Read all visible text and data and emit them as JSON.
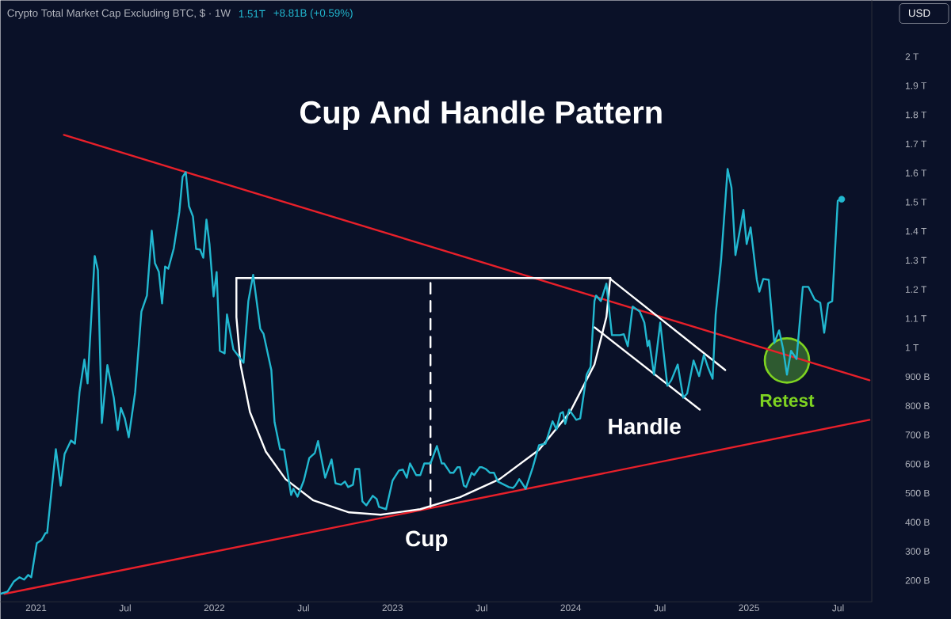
{
  "chart_data": {
    "type": "line",
    "title": "Cup And Handle Pattern",
    "subtitle": "Crypto Total Market Cap Excluding BTC, $ · 1W",
    "annotations": [
      "1.51T",
      "+8.81B (+0.59%)",
      "USD",
      "Cup",
      "Handle",
      {
        "text": "Retest",
        "x": 2025.213,
        "y": 956000000000.0
      }
    ],
    "xlim": [
      2020.8,
      2025.689
    ],
    "ylim": [
      127000000000.0,
      2193000000000.0
    ],
    "xticks": [
      {
        "value": 2021,
        "label": "2021"
      },
      {
        "value": 2021.5,
        "label": "Jul"
      },
      {
        "value": 2022,
        "label": "2022"
      },
      {
        "value": 2022.5,
        "label": "Jul"
      },
      {
        "value": 2023,
        "label": "2023"
      },
      {
        "value": 2023.5,
        "label": "Jul"
      },
      {
        "value": 2024,
        "label": "2024"
      },
      {
        "value": 2024.5,
        "label": "Jul"
      },
      {
        "value": 2025,
        "label": "2025"
      },
      {
        "value": 2025.5,
        "label": "Jul"
      }
    ],
    "yticks": [
      {
        "value": 200000000000.0,
        "label": "200 B"
      },
      {
        "value": 300000000000.0,
        "label": "300 B"
      },
      {
        "value": 400000000000.0,
        "label": "400 B"
      },
      {
        "value": 500000000000.0,
        "label": "500 B"
      },
      {
        "value": 600000000000.0,
        "label": "600 B"
      },
      {
        "value": 700000000000.0,
        "label": "700 B"
      },
      {
        "value": 800000000000.0,
        "label": "800 B"
      },
      {
        "value": 900000000000.0,
        "label": "900 B"
      },
      {
        "value": 1000000000000.0,
        "label": "1 T"
      },
      {
        "value": 1100000000000.0,
        "label": "1.1 T"
      },
      {
        "value": 1200000000000.0,
        "label": "1.2 T"
      },
      {
        "value": 1300000000000.0,
        "label": "1.3 T"
      },
      {
        "value": 1400000000000.0,
        "label": "1.4 T"
      },
      {
        "value": 1500000000000.0,
        "label": "1.5 T"
      },
      {
        "value": 1600000000000.0,
        "label": "1.6 T"
      },
      {
        "value": 1700000000000.0,
        "label": "1.7 T"
      },
      {
        "value": 1800000000000.0,
        "label": "1.8 T"
      },
      {
        "value": 1900000000000.0,
        "label": "1.9 T"
      },
      {
        "value": 2000000000000.0,
        "label": "2 T"
      }
    ],
    "series": [
      {
        "color": "#e8202a",
        "x": [
          2021.156,
          2025.676
        ],
        "values": [
          1731000000000.0,
          888000000000.0
        ]
      },
      {
        "color": "#e8202a",
        "x": [
          2020.822,
          2025.676
        ],
        "values": [
          154000000000.0,
          752000000000.0
        ]
      },
      {
        "color": "#ffffff",
        "x": [
          2022.124,
          2024.222
        ],
        "values": [
          1239000000000.0,
          1239000000000.0
        ]
      },
      {
        "color": "#ffffff",
        "x": [
          2022.124,
          2022.124,
          2022.147,
          2022.2,
          2022.289,
          2022.4,
          2022.556,
          2022.756,
          2022.933,
          2023.156,
          2023.378,
          2023.6,
          2023.822,
          2023.996,
          2024.133,
          2024.2,
          2024.222
        ],
        "values": [
          1239000000000.0,
          1105000000000.0,
          942000000000.0,
          779000000000.0,
          643000000000.0,
          548000000000.0,
          475000000000.0,
          434000000000.0,
          426000000000.0,
          445000000000.0,
          486000000000.0,
          548000000000.0,
          649000000000.0,
          779000000000.0,
          942000000000.0,
          1105000000000.0,
          1239000000000.0
        ]
      },
      {
        "color": "#ffffff",
        "line_style": "dashed",
        "x": [
          2023.213,
          2023.213
        ],
        "values": [
          1222000000000.0,
          453000000000.0
        ]
      },
      {
        "color": "#ffffff",
        "x": [
          2024.222,
          2024.867
        ],
        "values": [
          1236000000000.0,
          923000000000.0
        ]
      },
      {
        "color": "#ffffff",
        "x": [
          2024.133,
          2024.724
        ],
        "values": [
          1070000000000.0,
          787000000000.0
        ]
      },
      {
        "color": "#22b8d0",
        "x": [
          2020.8,
          2020.84,
          2020.876,
          2020.907,
          2020.933,
          2020.956,
          2020.973,
          2021.004,
          2021.031,
          2021.053,
          2021.062,
          2021.111,
          2021.138,
          2021.16,
          2021.196,
          2021.218,
          2021.244,
          2021.271,
          2021.289,
          2021.329,
          2021.347,
          2021.369,
          2021.4,
          2021.436,
          2021.458,
          2021.476,
          2021.498,
          2021.52,
          2021.556,
          2021.591,
          2021.622,
          2021.649,
          2021.667,
          2021.689,
          2021.707,
          2021.724,
          2021.742,
          2021.773,
          2021.804,
          2021.822,
          2021.84,
          2021.858,
          2021.88,
          2021.898,
          2021.92,
          2021.938,
          2021.956,
          2021.973,
          2021.996,
          2022.013,
          2022.031,
          2022.058,
          2022.071,
          2022.107,
          2022.164,
          2022.191,
          2022.218,
          2022.258,
          2022.276,
          2022.32,
          2022.338,
          2022.369,
          2022.391,
          2022.431,
          2022.444,
          2022.467,
          2022.502,
          2022.533,
          2022.564,
          2022.582,
          2022.622,
          2022.658,
          2022.68,
          2022.711,
          2022.733,
          2022.751,
          2022.778,
          2022.791,
          2022.813,
          2022.831,
          2022.853,
          2022.889,
          2022.911,
          2022.924,
          2022.964,
          2023.0,
          2023.036,
          2023.058,
          2023.08,
          2023.098,
          2023.133,
          2023.156,
          2023.178,
          2023.213,
          2023.249,
          2023.276,
          2023.289,
          2023.324,
          2023.342,
          2023.364,
          2023.378,
          2023.4,
          2023.413,
          2023.444,
          2023.458,
          2023.489,
          2023.502,
          2023.524,
          2023.547,
          2023.569,
          2023.591,
          2023.653,
          2023.676,
          2023.689,
          2023.711,
          2023.724,
          2023.747,
          2023.787,
          2023.822,
          2023.858,
          2023.898,
          2023.92,
          2023.942,
          2023.956,
          2023.969,
          2023.991,
          2024.031,
          2024.053,
          2024.089,
          2024.111,
          2024.133,
          2024.142,
          2024.169,
          2024.2,
          2024.231,
          2024.276,
          2024.298,
          2024.32,
          2024.347,
          2024.387,
          2024.413,
          2024.431,
          2024.44,
          2024.467,
          2024.502,
          2024.542,
          2024.564,
          2024.6,
          2024.631,
          2024.653,
          2024.689,
          2024.72,
          2024.747,
          2024.769,
          2024.796,
          2024.813,
          2024.844,
          2024.88,
          2024.902,
          2024.924,
          2024.969,
          2024.987,
          2025.009,
          2025.044,
          2025.058,
          2025.08,
          2025.111,
          2025.142,
          2025.169,
          2025.191,
          2025.213,
          2025.236,
          2025.267,
          2025.302,
          2025.333,
          2025.369,
          2025.4,
          2025.422,
          2025.444,
          2025.467,
          2025.498,
          2025.52
        ],
        "values": [
          154000000000.0,
          162000000000.0,
          197000000000.0,
          211000000000.0,
          203000000000.0,
          219000000000.0,
          211000000000.0,
          328000000000.0,
          339000000000.0,
          363000000000.0,
          363000000000.0,
          651000000000.0,
          526000000000.0,
          635000000000.0,
          681000000000.0,
          670000000000.0,
          847000000000.0,
          959000000000.0,
          877000000000.0,
          1315000000000.0,
          1266000000000.0,
          741000000000.0,
          940000000000.0,
          828000000000.0,
          717000000000.0,
          793000000000.0,
          757000000000.0,
          692000000000.0,
          847000000000.0,
          1124000000000.0,
          1179000000000.0,
          1402000000000.0,
          1290000000000.0,
          1260000000000.0,
          1152000000000.0,
          1279000000000.0,
          1271000000000.0,
          1342000000000.0,
          1467000000000.0,
          1587000000000.0,
          1603000000000.0,
          1486000000000.0,
          1451000000000.0,
          1339000000000.0,
          1337000000000.0,
          1309000000000.0,
          1440000000000.0,
          1356000000000.0,
          1176000000000.0,
          1260000000000.0,
          989000000000.0,
          980000000000.0,
          1114000000000.0,
          994000000000.0,
          948000000000.0,
          1160000000000.0,
          1250000000000.0,
          1065000000000.0,
          1048000000000.0,
          923000000000.0,
          744000000000.0,
          651000000000.0,
          649000000000.0,
          494000000000.0,
          515000000000.0,
          488000000000.0,
          543000000000.0,
          621000000000.0,
          638000000000.0,
          679000000000.0,
          553000000000.0,
          616000000000.0,
          534000000000.0,
          529000000000.0,
          540000000000.0,
          521000000000.0,
          529000000000.0,
          583000000000.0,
          583000000000.0,
          472000000000.0,
          458000000000.0,
          491000000000.0,
          480000000000.0,
          453000000000.0,
          445000000000.0,
          543000000000.0,
          578000000000.0,
          581000000000.0,
          553000000000.0,
          602000000000.0,
          562000000000.0,
          562000000000.0,
          602000000000.0,
          602000000000.0,
          662000000000.0,
          602000000000.0,
          602000000000.0,
          570000000000.0,
          570000000000.0,
          589000000000.0,
          589000000000.0,
          526000000000.0,
          521000000000.0,
          570000000000.0,
          562000000000.0,
          589000000000.0,
          589000000000.0,
          583000000000.0,
          570000000000.0,
          570000000000.0,
          540000000000.0,
          521000000000.0,
          518000000000.0,
          526000000000.0,
          548000000000.0,
          537000000000.0,
          515000000000.0,
          589000000000.0,
          665000000000.0,
          670000000000.0,
          747000000000.0,
          719000000000.0,
          774000000000.0,
          779000000000.0,
          738000000000.0,
          787000000000.0,
          752000000000.0,
          757000000000.0,
          907000000000.0,
          934000000000.0,
          1160000000000.0,
          1179000000000.0,
          1160000000000.0,
          1220000000000.0,
          1043000000000.0,
          1043000000000.0,
          1046000000000.0,
          1005000000000.0,
          1141000000000.0,
          1124000000000.0,
          1086000000000.0,
          1005000000000.0,
          1024000000000.0,
          907000000000.0,
          1086000000000.0,
          869000000000.0,
          888000000000.0,
          942000000000.0,
          828000000000.0,
          842000000000.0,
          956000000000.0,
          902000000000.0,
          975000000000.0,
          934000000000.0,
          893000000000.0,
          1114000000000.0,
          1304000000000.0,
          1614000000000.0,
          1549000000000.0,
          1318000000000.0,
          1473000000000.0,
          1356000000000.0,
          1413000000000.0,
          1233000000000.0,
          1192000000000.0,
          1236000000000.0,
          1233000000000.0,
          1016000000000.0,
          1059000000000.0,
          997000000000.0,
          907000000000.0,
          989000000000.0,
          961000000000.0,
          1209000000000.0,
          1209000000000.0,
          1165000000000.0,
          1154000000000.0,
          1051000000000.0,
          1152000000000.0,
          1160000000000.0,
          1505000000000.0,
          1510000000000.0
        ]
      },
      {
        "type": "scatter",
        "marker": "circle",
        "color": "#22b8d0",
        "x": [
          2025.52
        ],
        "values": [
          1510000000000.0
        ]
      }
    ]
  }
}
